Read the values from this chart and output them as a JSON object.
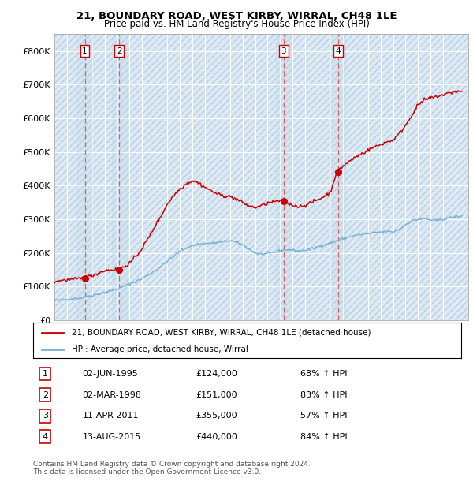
{
  "title1": "21, BOUNDARY ROAD, WEST KIRBY, WIRRAL, CH48 1LE",
  "title2": "Price paid vs. HM Land Registry's House Price Index (HPI)",
  "footer": "Contains HM Land Registry data © Crown copyright and database right 2024.\nThis data is licensed under the Open Government Licence v3.0.",
  "legend_label1": "21, BOUNDARY ROAD, WEST KIRBY, WIRRAL, CH48 1LE (detached house)",
  "legend_label2": "HPI: Average price, detached house, Wirral",
  "transactions": [
    {
      "num": 1,
      "date_num": 1995.42,
      "price": 124000
    },
    {
      "num": 2,
      "date_num": 1998.17,
      "price": 151000
    },
    {
      "num": 3,
      "date_num": 2011.27,
      "price": 355000
    },
    {
      "num": 4,
      "date_num": 2015.62,
      "price": 440000
    }
  ],
  "table_rows": [
    {
      "num": 1,
      "date": "02-JUN-1995",
      "price": "£124,000",
      "pct": "68% ↑ HPI"
    },
    {
      "num": 2,
      "date": "02-MAR-1998",
      "price": "£151,000",
      "pct": "83% ↑ HPI"
    },
    {
      "num": 3,
      "date": "11-APR-2011",
      "price": "£355,000",
      "pct": "57% ↑ HPI"
    },
    {
      "num": 4,
      "date": "13-AUG-2015",
      "price": "£440,000",
      "pct": "84% ↑ HPI"
    }
  ],
  "hpi_color": "#7ab3d4",
  "price_color": "#cc0000",
  "dashed_color": "#e05050",
  "background_color": "#ffffff",
  "ylim": [
    0,
    850000
  ],
  "yticks": [
    0,
    100000,
    200000,
    300000,
    400000,
    500000,
    600000,
    700000,
    800000
  ],
  "ytick_labels": [
    "£0",
    "£100K",
    "£200K",
    "£300K",
    "£400K",
    "£500K",
    "£600K",
    "£700K",
    "£800K"
  ],
  "xmin": 1993,
  "xmax": 2026,
  "hpi_series_x": [
    1993.0,
    1993.5,
    1994.0,
    1994.5,
    1995.0,
    1995.5,
    1996.0,
    1996.5,
    1997.0,
    1997.5,
    1998.0,
    1998.5,
    1999.0,
    1999.5,
    2000.0,
    2000.5,
    2001.0,
    2001.5,
    2002.0,
    2002.5,
    2003.0,
    2003.5,
    2004.0,
    2004.5,
    2005.0,
    2005.5,
    2006.0,
    2006.5,
    2007.0,
    2007.5,
    2008.0,
    2008.5,
    2009.0,
    2009.5,
    2010.0,
    2010.5,
    2011.0,
    2011.5,
    2012.0,
    2012.5,
    2013.0,
    2013.5,
    2014.0,
    2014.5,
    2015.0,
    2015.5,
    2016.0,
    2016.5,
    2017.0,
    2017.5,
    2018.0,
    2018.5,
    2019.0,
    2019.5,
    2020.0,
    2020.5,
    2021.0,
    2021.5,
    2022.0,
    2022.5,
    2023.0,
    2023.5,
    2024.0,
    2024.5,
    2025.0
  ],
  "hpi_series_y": [
    58000,
    60000,
    62000,
    64000,
    66000,
    70000,
    74000,
    78000,
    83000,
    88000,
    93000,
    100000,
    108000,
    116000,
    124000,
    135000,
    147000,
    160000,
    175000,
    190000,
    205000,
    215000,
    222000,
    226000,
    228000,
    229000,
    231000,
    234000,
    237000,
    232000,
    225000,
    212000,
    200000,
    196000,
    198000,
    202000,
    207000,
    210000,
    208000,
    206000,
    208000,
    212000,
    218000,
    224000,
    230000,
    236000,
    242000,
    248000,
    252000,
    255000,
    258000,
    260000,
    262000,
    264000,
    262000,
    270000,
    285000,
    295000,
    300000,
    302000,
    298000,
    296000,
    300000,
    305000,
    308000
  ],
  "prop_series_x": [
    1993.0,
    1993.5,
    1994.0,
    1994.5,
    1995.0,
    1995.5,
    1996.0,
    1996.5,
    1997.0,
    1997.5,
    1998.0,
    1998.5,
    1999.0,
    1999.5,
    2000.0,
    2000.5,
    2001.0,
    2001.5,
    2002.0,
    2002.5,
    2003.0,
    2003.5,
    2004.0,
    2004.5,
    2005.0,
    2005.5,
    2006.0,
    2006.5,
    2007.0,
    2007.5,
    2008.0,
    2008.5,
    2009.0,
    2009.5,
    2010.0,
    2010.5,
    2011.0,
    2011.5,
    2012.0,
    2012.5,
    2013.0,
    2013.5,
    2014.0,
    2014.5,
    2015.0,
    2015.5,
    2016.0,
    2016.5,
    2017.0,
    2017.5,
    2018.0,
    2018.5,
    2019.0,
    2019.5,
    2020.0,
    2020.5,
    2021.0,
    2021.5,
    2022.0,
    2022.5,
    2023.0,
    2023.5,
    2024.0,
    2024.5,
    2025.0
  ],
  "prop_series_y": [
    115000,
    118000,
    120000,
    122000,
    124000,
    128000,
    133000,
    140000,
    148000,
    150000,
    151000,
    158000,
    170000,
    190000,
    215000,
    245000,
    278000,
    310000,
    345000,
    370000,
    390000,
    405000,
    415000,
    408000,
    395000,
    385000,
    375000,
    370000,
    368000,
    360000,
    350000,
    340000,
    335000,
    340000,
    348000,
    352000,
    355000,
    348000,
    342000,
    338000,
    342000,
    350000,
    358000,
    368000,
    380000,
    440000,
    458000,
    472000,
    485000,
    495000,
    505000,
    515000,
    522000,
    530000,
    535000,
    555000,
    580000,
    610000,
    640000,
    655000,
    660000,
    665000,
    670000,
    675000,
    680000
  ]
}
